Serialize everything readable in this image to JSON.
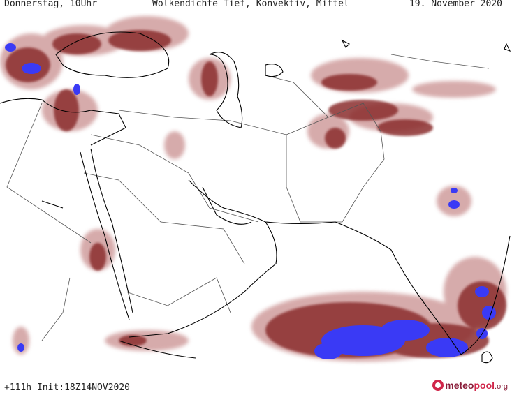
{
  "header": {
    "left": "Donnerstag, 10Uhr",
    "center": "Wolkendichte  Tief, Konvektiv, Mittel",
    "right": "19. November 2020"
  },
  "footer": {
    "init": "+111h  Init:18Z14NOV2020",
    "logo_part1": "meteo",
    "logo_part2": "pool",
    "logo_part3": ".org"
  },
  "colors": {
    "cloud_low": "#8b2e2e",
    "cloud_light": "#c78b8b",
    "cloud_high": "#3a3af5",
    "coast": "#000000",
    "border": "#555555"
  },
  "icons": {
    "logo": "meteopool-circle-icon"
  }
}
